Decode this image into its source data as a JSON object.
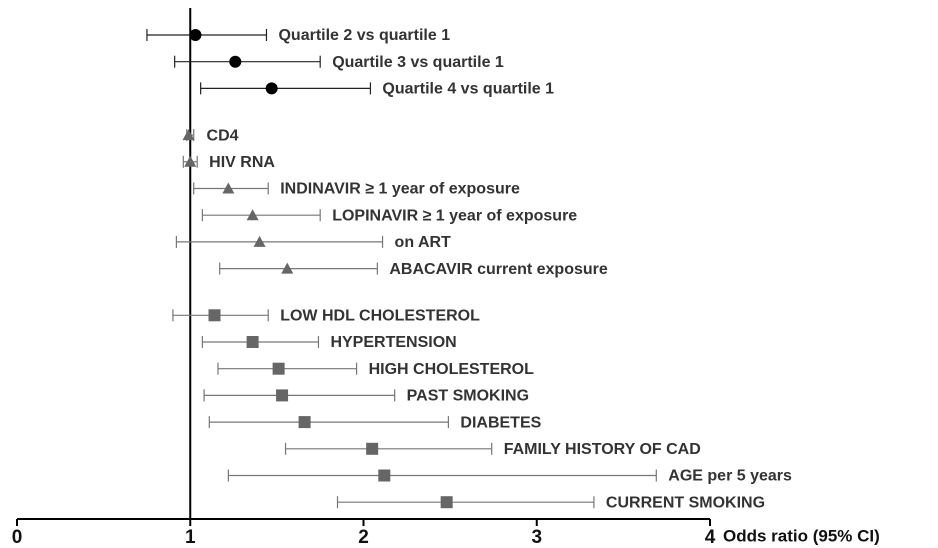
{
  "chart_data": {
    "type": "forest",
    "xlim": [
      0,
      4
    ],
    "xticks": [
      0,
      1,
      2,
      3,
      4
    ],
    "xlabel": "Odds ratio (95% CI)",
    "reference_line": 1,
    "groups": [
      {
        "marker": "circle",
        "color": "#000000",
        "labels": [
          "Quartile 2 vs  quartile 1",
          "Quartile 3 vs  quartile 1",
          "Quartile 4 vs  quartile 1"
        ],
        "values": [
          1.03,
          1.26,
          1.47
        ],
        "lower": [
          0.75,
          0.91,
          1.06
        ],
        "upper": [
          1.44,
          1.75,
          2.04
        ]
      },
      {
        "marker": "triangle",
        "color": "#666666",
        "labels": [
          "CD4",
          "HIV RNA",
          "INDINAVIR ≥ 1 year of exposure",
          "LOPINAVIR ≥ 1 year of exposure",
          "on ART",
          "ABACAVIR current exposure"
        ],
        "values": [
          0.99,
          1.0,
          1.22,
          1.36,
          1.4,
          1.56
        ],
        "lower": [
          0.98,
          0.96,
          1.02,
          1.07,
          0.92,
          1.17
        ],
        "upper": [
          1.02,
          1.04,
          1.45,
          1.75,
          2.11,
          2.08
        ]
      },
      {
        "marker": "square",
        "color": "#666666",
        "labels": [
          "LOW HDL CHOLESTEROL",
          "HYPERTENSION",
          "HIGH CHOLESTEROL",
          "PAST SMOKING",
          "DIABETES",
          "FAMILY HISTORY OF CAD",
          "AGE per 5 years",
          "CURRENT SMOKING"
        ],
        "values": [
          1.14,
          1.36,
          1.51,
          1.53,
          1.66,
          2.05,
          2.12,
          2.48
        ],
        "lower": [
          0.9,
          1.07,
          1.16,
          1.08,
          1.11,
          1.55,
          1.22,
          1.85
        ],
        "upper": [
          1.45,
          1.74,
          1.96,
          2.18,
          2.49,
          2.74,
          3.69,
          3.33
        ]
      }
    ]
  }
}
